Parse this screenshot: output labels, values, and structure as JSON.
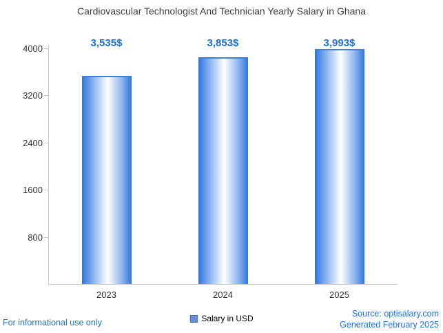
{
  "title": "Cardiovascular Technologist And Technician Yearly Salary in Ghana",
  "chart_data": {
    "type": "bar",
    "categories": [
      "2023",
      "2024",
      "2025"
    ],
    "values": [
      3535,
      3853,
      3993
    ],
    "value_labels": [
      "3,535$",
      "3,853$",
      "3,993$"
    ],
    "series_name": "Salary in USD",
    "title": "Cardiovascular Technologist And Technician Yearly Salary in Ghana",
    "xlabel": "",
    "ylabel": "",
    "ylim": [
      0,
      4000
    ],
    "y_ticks": [
      800,
      1600,
      2400,
      3200,
      4000
    ],
    "grid": false,
    "legend_position": "bottom",
    "bar_color": "#2e76dd",
    "bar_highlight_color": "#ffffff",
    "value_label_color": "#1a6fe0"
  },
  "legend": {
    "label": "Salary in USD"
  },
  "footer": {
    "left": "For informational use only",
    "source": "Source: optisalary.com",
    "generated": "Generated February 2025"
  }
}
